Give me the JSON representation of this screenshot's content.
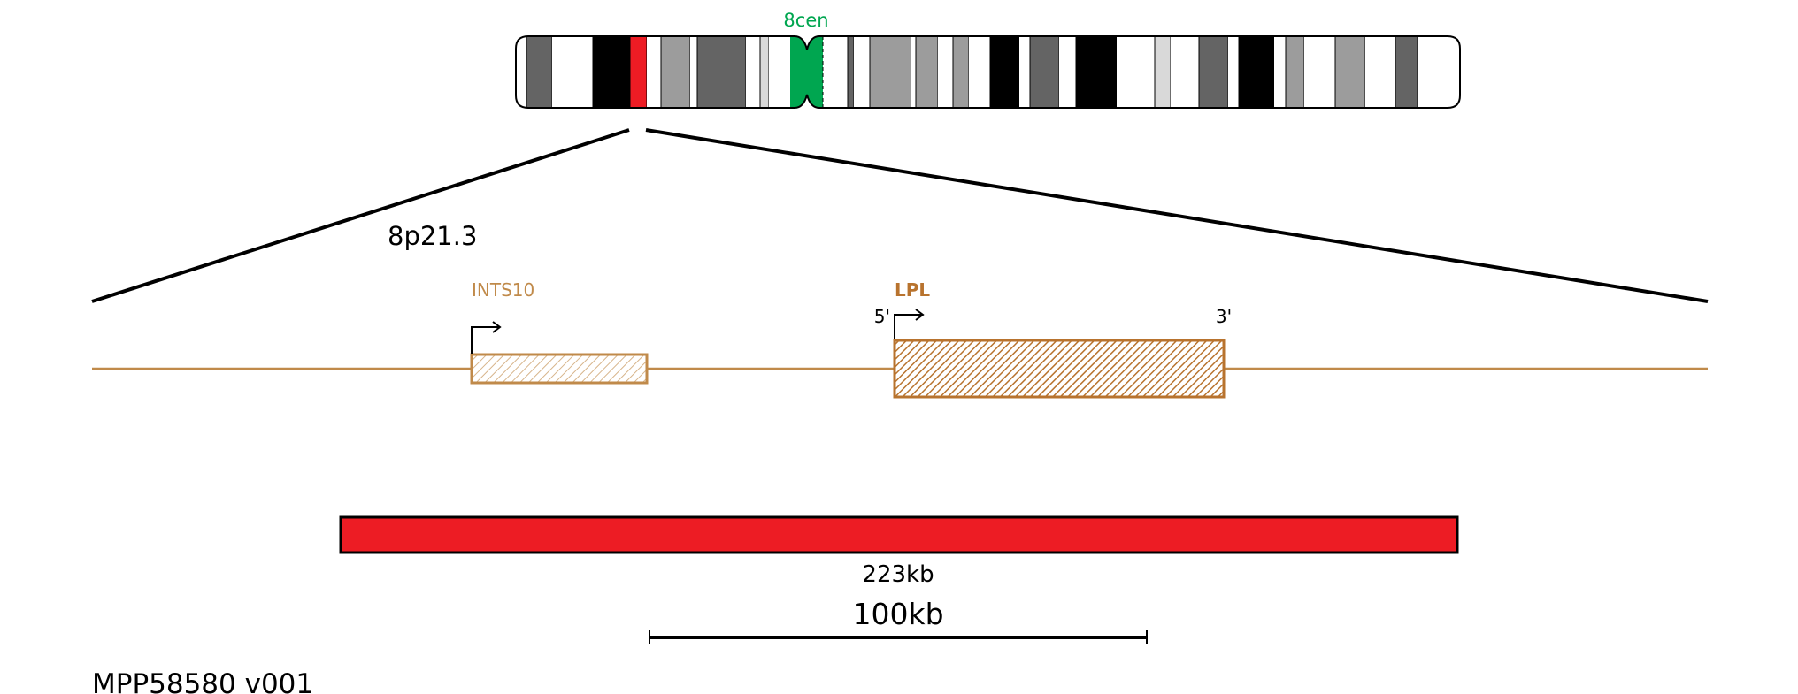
{
  "chromosome": {
    "centromere_label": "8cen",
    "centromere_color": "#00a650",
    "highlight_band_color": "#ed1c24"
  },
  "region": {
    "band_label": "8p21.3"
  },
  "genes": [
    {
      "name": "INTS10",
      "strand": "+",
      "label_weight": "normal",
      "color": "#c08a4a"
    },
    {
      "name": "LPL",
      "strand": "+",
      "label_weight": "bold",
      "color": "#b8732e",
      "five_prime": "5'",
      "three_prime": "3'"
    }
  ],
  "cnv": {
    "size_label": "223kb",
    "color": "#ed1c24"
  },
  "scale_bar": {
    "label": "100kb"
  },
  "footer": {
    "id_label": "MPP58580 v001"
  }
}
